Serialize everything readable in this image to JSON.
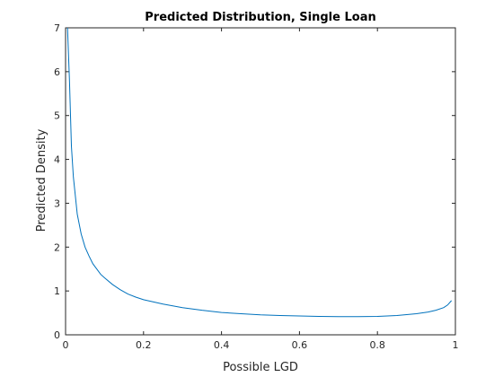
{
  "chart_data": {
    "type": "line",
    "title": "Predicted Distribution, Single Loan",
    "xlabel": "Possible LGD",
    "ylabel": "Predicted Density",
    "xlim": [
      0,
      1
    ],
    "ylim": [
      0,
      7
    ],
    "xticks": [
      0,
      0.2,
      0.4,
      0.6,
      0.8,
      1
    ],
    "xtick_labels": [
      "0",
      "0.2",
      "0.4",
      "0.6",
      "0.8",
      "1"
    ],
    "yticks": [
      0,
      1,
      2,
      3,
      4,
      5,
      6,
      7
    ],
    "ytick_labels": [
      "0",
      "1",
      "2",
      "3",
      "4",
      "5",
      "6",
      "7"
    ],
    "grid": false,
    "line_color": "#0072bd",
    "series": [
      {
        "x": [
          0.005,
          0.01,
          0.015,
          0.02,
          0.03,
          0.04,
          0.05,
          0.06,
          0.07,
          0.08,
          0.09,
          0.1,
          0.12,
          0.14,
          0.16,
          0.18,
          0.2,
          0.25,
          0.3,
          0.35,
          0.4,
          0.45,
          0.5,
          0.55,
          0.6,
          0.65,
          0.7,
          0.75,
          0.8,
          0.85,
          0.9,
          0.93,
          0.95,
          0.97,
          0.98,
          0.99
        ],
        "y": [
          7.0,
          5.8,
          4.3,
          3.6,
          2.75,
          2.3,
          2.0,
          1.8,
          1.62,
          1.5,
          1.38,
          1.3,
          1.15,
          1.03,
          0.93,
          0.86,
          0.8,
          0.7,
          0.62,
          0.56,
          0.51,
          0.48,
          0.455,
          0.44,
          0.43,
          0.42,
          0.415,
          0.415,
          0.42,
          0.44,
          0.48,
          0.52,
          0.56,
          0.62,
          0.68,
          0.78
        ]
      }
    ]
  }
}
